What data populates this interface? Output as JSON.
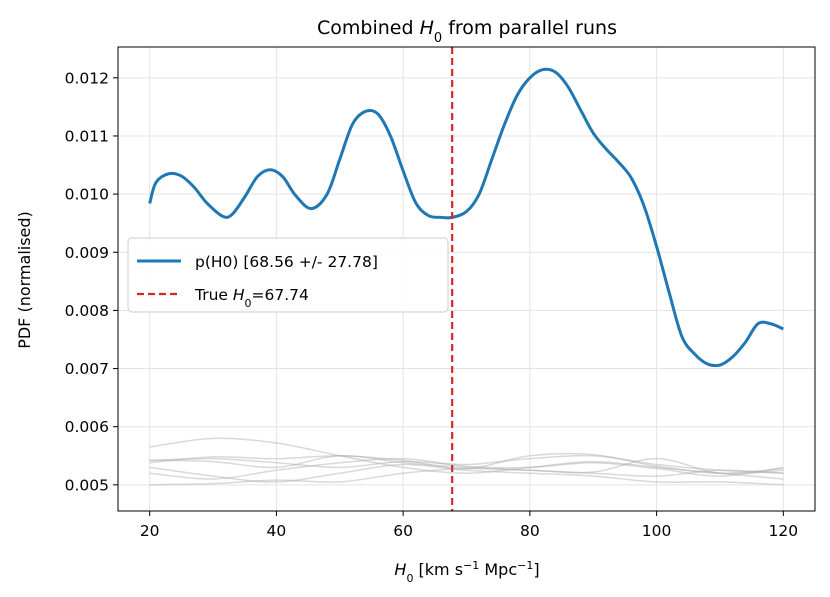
{
  "chart_data": {
    "type": "line",
    "title_pre": "Combined ",
    "title_var": "H",
    "title_sub": "0",
    "title_post": " from parallel runs",
    "xlabel_var": "H",
    "xlabel_sub": "0",
    "xlabel_units_pre": " [km s",
    "xlabel_exp1": "−1",
    "xlabel_units_mid": " Mpc",
    "xlabel_exp2": "−1",
    "xlabel_units_post": "]",
    "ylabel": "PDF (normalised)",
    "xlim": [
      15,
      125
    ],
    "ylim": [
      0.00455,
      0.01253
    ],
    "xticks": [
      20,
      40,
      60,
      80,
      100,
      120
    ],
    "yticks": [
      0.005,
      0.006,
      0.007,
      0.008,
      0.009,
      0.01,
      0.011,
      0.012
    ],
    "ytick_labels": [
      "0.005",
      "0.006",
      "0.007",
      "0.008",
      "0.009",
      "0.010",
      "0.011",
      "0.012"
    ],
    "grid": true,
    "legend_position": "center-left",
    "combined": {
      "label": "p(H0) [68.56 +/- 27.78]",
      "color": "#1f77b4",
      "x": [
        20,
        21,
        23,
        25,
        27,
        29,
        31.5,
        33,
        35,
        37,
        39,
        41,
        43,
        45.5,
        48,
        50,
        52,
        54,
        56,
        58,
        60,
        62,
        64,
        66,
        67.74,
        70,
        72,
        74,
        76,
        78,
        80,
        82,
        84,
        86,
        88,
        90,
        92,
        94,
        96,
        98,
        100,
        102,
        104,
        106,
        108,
        110,
        112,
        114,
        116,
        118,
        120
      ],
      "y": [
        0.00984,
        0.0102,
        0.01035,
        0.01031,
        0.01012,
        0.00985,
        0.00962,
        0.00965,
        0.00995,
        0.0103,
        0.01042,
        0.0103,
        0.00998,
        0.00975,
        0.01,
        0.0106,
        0.0112,
        0.01142,
        0.01138,
        0.011,
        0.0104,
        0.00985,
        0.00963,
        0.0096,
        0.0096,
        0.0097,
        0.01,
        0.0106,
        0.0112,
        0.0117,
        0.012,
        0.01214,
        0.0121,
        0.01185,
        0.01145,
        0.01105,
        0.01078,
        0.01055,
        0.01028,
        0.0098,
        0.0091,
        0.0083,
        0.00755,
        0.00725,
        0.00708,
        0.00706,
        0.0072,
        0.00745,
        0.00777,
        0.00777,
        0.00768
      ]
    },
    "true_line": {
      "label_pre": "True ",
      "label_var": "H",
      "label_sub": "0",
      "label_post": "=67.74",
      "x": 67.74,
      "color": "#d62728"
    },
    "individual_runs": {
      "color": "#aaaaaa",
      "x": [
        20,
        30,
        40,
        50,
        60,
        70,
        80,
        90,
        100,
        110,
        120
      ],
      "series": [
        [
          0.00565,
          0.0058,
          0.00572,
          0.0055,
          0.0053,
          0.0052,
          0.0053,
          0.0054,
          0.0053,
          0.0052,
          0.0051
        ],
        [
          0.00542,
          0.00545,
          0.00538,
          0.0053,
          0.0054,
          0.00535,
          0.00545,
          0.0055,
          0.00535,
          0.00525,
          0.0052
        ],
        [
          0.00538,
          0.00548,
          0.00545,
          0.0055,
          0.00542,
          0.00528,
          0.0055,
          0.00552,
          0.00532,
          0.0052,
          0.00528
        ],
        [
          0.0052,
          0.0051,
          0.00525,
          0.00538,
          0.00545,
          0.00532,
          0.0053,
          0.00538,
          0.00528,
          0.00515,
          0.0053
        ],
        [
          0.0053,
          0.00515,
          0.00505,
          0.0052,
          0.00535,
          0.00525,
          0.0052,
          0.00515,
          0.00505,
          0.00505,
          0.005
        ],
        [
          0.005,
          0.00502,
          0.00508,
          0.00505,
          0.0052,
          0.00528,
          0.00525,
          0.00522,
          0.00545,
          0.0052,
          0.00525
        ],
        [
          0.00542,
          0.0054,
          0.0053,
          0.0055,
          0.00538,
          0.0053,
          0.00525,
          0.0052,
          0.00515,
          0.00525,
          0.0052
        ]
      ]
    }
  }
}
